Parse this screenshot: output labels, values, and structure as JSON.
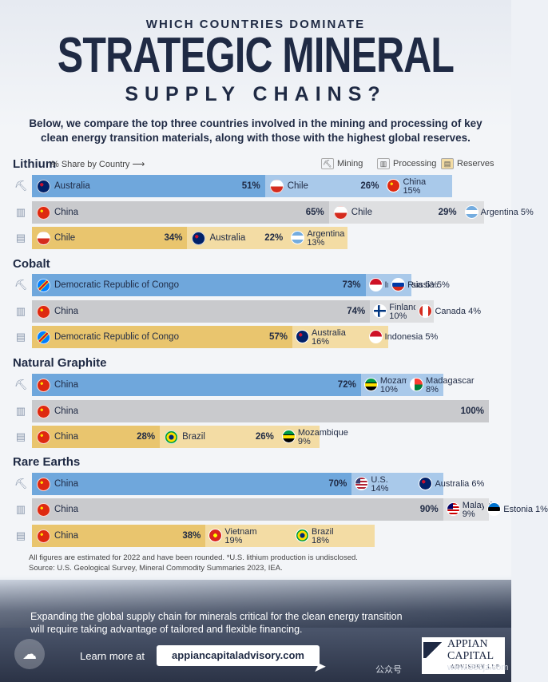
{
  "header": {
    "kicker": "WHICH COUNTRIES DOMINATE",
    "title": "STRATEGIC MINERAL",
    "subtitle": "SUPPLY CHAINS?",
    "intro": "Below, we compare the top three countries involved in the mining and processing of key clean energy transition materials, along with those with the highest global reserves."
  },
  "legend": {
    "share_label": "% Share by Country",
    "arrow": "⟶",
    "mining": "Mining",
    "processing": "Processing",
    "reserves": "Reserves"
  },
  "colors": {
    "mining": "#6fa7dc",
    "mining_light": "#a9c9ea",
    "processing": "#c9cacd",
    "processing_light": "#dedfe1",
    "reserves": "#e9c56e",
    "reserves_light": "#f3dca4",
    "text": "#1f2a44"
  },
  "icons": {
    "mining": "pickaxe-icon",
    "processing": "factory-icon",
    "reserves": "warehouse-icon"
  },
  "chart_data": {
    "type": "bar",
    "orientation": "horizontal-stacked",
    "minerals": [
      {
        "name": "Lithium",
        "rows": [
          {
            "category": "Mining",
            "items": [
              {
                "country": "Australia",
                "value": 51,
                "label": "51%"
              },
              {
                "country": "Chile",
                "value": 26,
                "label": "26%"
              },
              {
                "country": "China",
                "value": 15,
                "label": "15%"
              }
            ]
          },
          {
            "category": "Processing",
            "items": [
              {
                "country": "China",
                "value": 65,
                "label": "65%"
              },
              {
                "country": "Chile",
                "value": 29,
                "label": "29%"
              },
              {
                "country": "Argentina",
                "value": 5,
                "label": "5%"
              }
            ]
          },
          {
            "category": "Reserves",
            "items": [
              {
                "country": "Chile",
                "value": 34,
                "label": "34%"
              },
              {
                "country": "Australia",
                "value": 22,
                "label": "22%"
              },
              {
                "country": "Argentina",
                "value": 13,
                "label": "13%"
              }
            ]
          }
        ]
      },
      {
        "name": "Cobalt",
        "rows": [
          {
            "category": "Mining",
            "items": [
              {
                "country": "Democratic Republic of Congo",
                "value": 73,
                "label": "73%"
              },
              {
                "country": "Indonesia",
                "value": 5,
                "label": "5%"
              },
              {
                "country": "Russia",
                "value": 5,
                "label": "5%"
              }
            ]
          },
          {
            "category": "Processing",
            "items": [
              {
                "country": "China",
                "value": 74,
                "label": "74%"
              },
              {
                "country": "Finland",
                "value": 10,
                "label": "10%"
              },
              {
                "country": "Canada",
                "value": 4,
                "label": "4%"
              }
            ]
          },
          {
            "category": "Reserves",
            "items": [
              {
                "country": "Democratic Republic of Congo",
                "value": 57,
                "label": "57%"
              },
              {
                "country": "Australia",
                "value": 16,
                "label": "16%"
              },
              {
                "country": "Indonesia",
                "value": 5,
                "label": "5%"
              }
            ]
          }
        ]
      },
      {
        "name": "Natural Graphite",
        "rows": [
          {
            "category": "Mining",
            "items": [
              {
                "country": "China",
                "value": 72,
                "label": "72%"
              },
              {
                "country": "Mozambique",
                "value": 10,
                "label": "10%"
              },
              {
                "country": "Madagascar",
                "value": 8,
                "label": "8%"
              }
            ]
          },
          {
            "category": "Processing",
            "items": [
              {
                "country": "China",
                "value": 100,
                "label": "100%"
              }
            ]
          },
          {
            "category": "Reserves",
            "items": [
              {
                "country": "China",
                "value": 28,
                "label": "28%"
              },
              {
                "country": "Brazil",
                "value": 26,
                "label": "26%"
              },
              {
                "country": "Mozambique",
                "value": 9,
                "label": "9%"
              }
            ]
          }
        ]
      },
      {
        "name": "Rare Earths",
        "rows": [
          {
            "category": "Mining",
            "items": [
              {
                "country": "China",
                "value": 70,
                "label": "70%"
              },
              {
                "country": "U.S.",
                "value": 14,
                "label": "14%"
              },
              {
                "country": "Australia",
                "value": 6,
                "label": "6%"
              }
            ]
          },
          {
            "category": "Processing",
            "items": [
              {
                "country": "China",
                "value": 90,
                "label": "90%"
              },
              {
                "country": "Malaysia",
                "value": 9,
                "label": "9%"
              },
              {
                "country": "Estonia",
                "value": 1,
                "label": "1%"
              }
            ]
          },
          {
            "category": "Reserves",
            "items": [
              {
                "country": "China",
                "value": 38,
                "label": "38%"
              },
              {
                "country": "Vietnam",
                "value": 19,
                "label": "19%"
              },
              {
                "country": "Brazil",
                "value": 18,
                "label": "18%"
              }
            ]
          }
        ]
      }
    ]
  },
  "notes": {
    "line1": "All figures are estimated for 2022 and have been rounded. *U.S. lithium production is undisclosed.",
    "line2": "Source: U.S. Geological Survey, Mineral Commodity Summaries 2023, IEA."
  },
  "footer": {
    "text": "Expanding the global supply chain for minerals critical for the clean energy transition will require taking advantage of tailored and flexible financing.",
    "learn_more": "Learn more at",
    "url": "appiancapitaladvisory.com",
    "logo_line1": "APPIAN",
    "logo_line2": "CAPITAL",
    "logo_line3": "ADVISORY LLP",
    "watermark_1": "公众号",
    "watermark_2": "www.365jz.com"
  }
}
